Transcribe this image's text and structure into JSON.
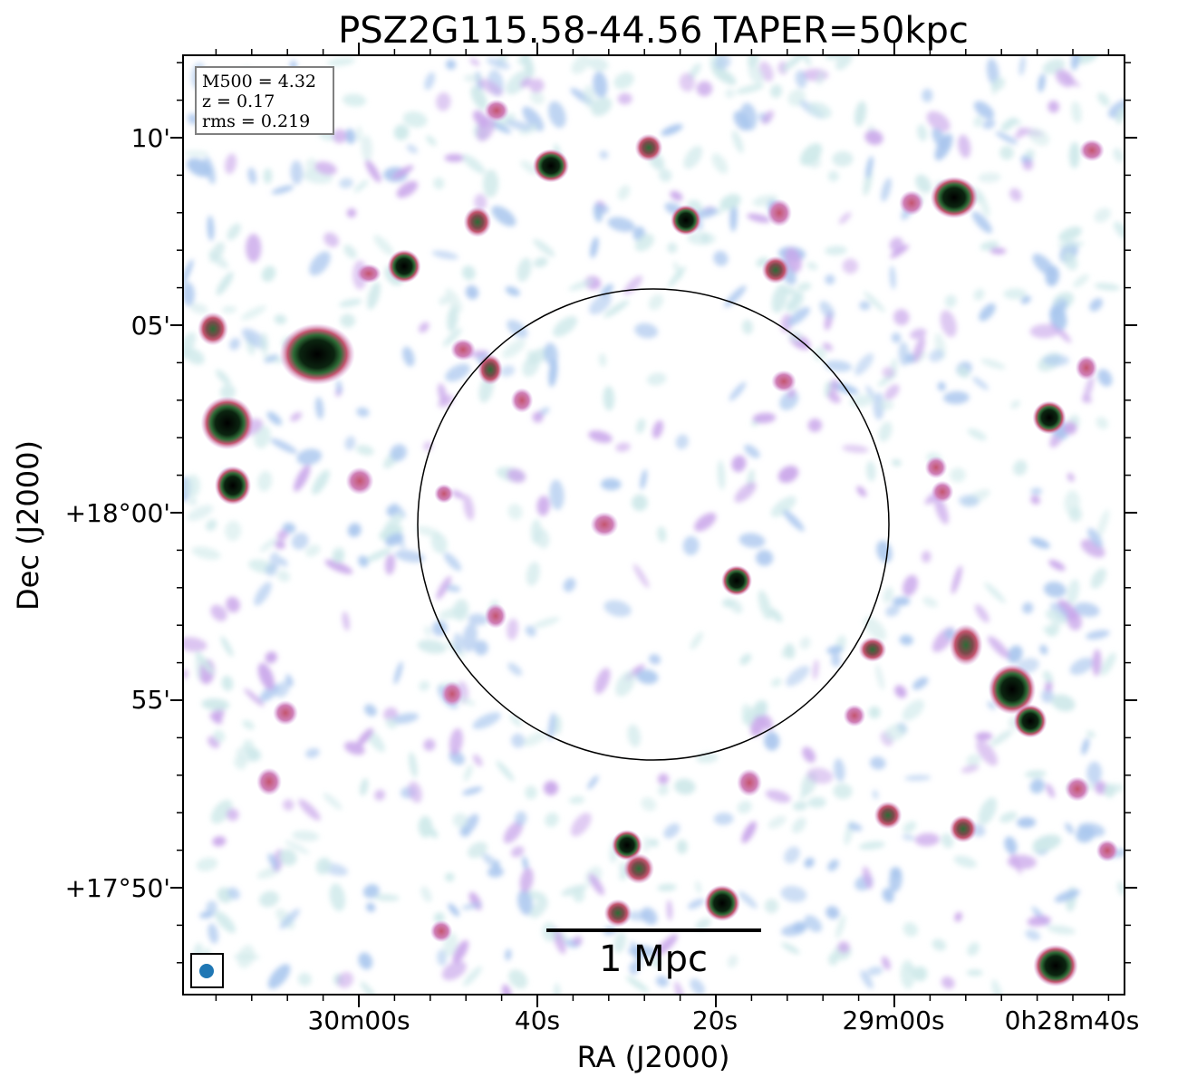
{
  "figure": {
    "title": "PSZ2G115.58-44.56 TAPER=50kpc",
    "xlabel": "RA (J2000)",
    "ylabel": "Dec (J2000)",
    "x_ticks": [
      "30m00s",
      "40s",
      "20s",
      "29m00s",
      "0h28m40s"
    ],
    "y_ticks": [
      "10'",
      "05'",
      "+18°00'",
      "55'",
      "+17°50'"
    ],
    "info": {
      "m500": "M500 = 4.32",
      "z": "z = 0.17",
      "rms": "rms = 0.219"
    },
    "scalebar_label": "1 Mpc",
    "colors": {
      "faint": "#cfe9ea",
      "low": "#a9c6ee",
      "mid": "#c9a6ea",
      "high": "#c4556f",
      "peak": "#2e6b36",
      "saturated": "#000000",
      "beam": "#1f77b4"
    }
  }
}
